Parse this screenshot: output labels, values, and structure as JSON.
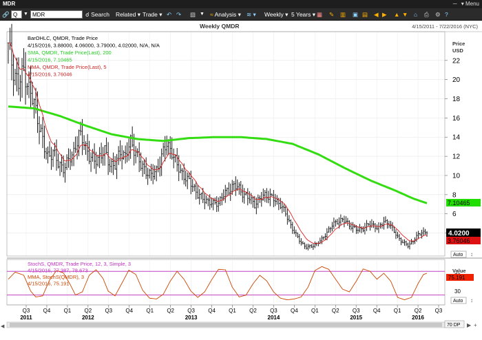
{
  "window": {
    "title": "MDR",
    "menu_label": "Menu",
    "menu_arrow": "▾"
  },
  "toolbar": {
    "symbol_type": "Q",
    "symbol": "MDR",
    "search": "Search",
    "related": "Related",
    "trade": "Trade",
    "analysis": "Analysis",
    "interval": "Weekly",
    "range": "5 Years",
    "arrow": "▾"
  },
  "chart": {
    "title": "Weekly QMDR",
    "date_range": "4/15/2011 - 7/22/2016 (NYC)",
    "price_axis_title": [
      "Price",
      "USD"
    ],
    "value_axis_title": "Value",
    "auto_label": "Auto",
    "zoom_label": "70 DP",
    "legend_main": [
      {
        "text": "BarOHLC, QMDR, Trade Price",
        "color": "#000000"
      },
      {
        "text": "4/15/2016, 3.88000, 4.06000, 3.79000, 4.02000, N/A, N/A",
        "color": "#000000"
      },
      {
        "text": "SMA, QMDR, Trade Price(Last), 200",
        "color": "#22cc22"
      },
      {
        "text": "4/15/2016, 7.10465",
        "color": "#22cc22"
      },
      {
        "text": "MMA, QMDR, Trade Price(Last), 5",
        "color": "#cc2222"
      },
      {
        "text": "4/15/2016, 3.76046",
        "color": "#cc2222"
      }
    ],
    "legend_lower": [
      {
        "text": "StochS, QMDR, Trade Price, 12, 3, Simple, 3",
        "color": "#c030c0"
      },
      {
        "text": "4/15/2016, 77.387, 78.673",
        "color": "#c030c0"
      },
      {
        "text": "MMA, StochS(QMDR), 3",
        "color": "#cc4400"
      },
      {
        "text": "4/15/2016, 75.191",
        "color": "#cc4400"
      }
    ],
    "price_tag_last": "4.0200",
    "price_tag_sma": "7.10465",
    "price_tag_mma": "3.76046",
    "value_tag": "75.191",
    "colors": {
      "sma": "#33dd11",
      "mma": "#dd2222",
      "bars": "#000000",
      "stoch": "#cc4400",
      "levels": "#c040c0"
    }
  },
  "chart_data": {
    "type": "line",
    "price_axis": {
      "ticks": [
        4,
        6,
        8,
        10,
        12,
        14,
        16,
        18,
        20,
        22
      ],
      "range": [
        1.6,
        25
      ]
    },
    "value_axis": {
      "ticks": [
        30,
        70
      ],
      "range": [
        -5,
        110
      ],
      "levels": [
        20,
        80
      ]
    },
    "x_quarters": [
      {
        "label": "Q3",
        "year": "2011"
      },
      {
        "label": "Q4",
        "year": ""
      },
      {
        "label": "Q1",
        "year": ""
      },
      {
        "label": "Q2",
        "year": "2012"
      },
      {
        "label": "Q3",
        "year": ""
      },
      {
        "label": "Q4",
        "year": ""
      },
      {
        "label": "Q1",
        "year": ""
      },
      {
        "label": "Q2",
        "year": ""
      },
      {
        "label": "Q3",
        "year": "2013"
      },
      {
        "label": "Q4",
        "year": ""
      },
      {
        "label": "Q1",
        "year": ""
      },
      {
        "label": "Q2",
        "year": ""
      },
      {
        "label": "Q3",
        "year": "2014"
      },
      {
        "label": "Q4",
        "year": ""
      },
      {
        "label": "Q1",
        "year": ""
      },
      {
        "label": "Q2",
        "year": ""
      },
      {
        "label": "Q3",
        "year": "2015"
      },
      {
        "label": "Q4",
        "year": ""
      },
      {
        "label": "Q1",
        "year": ""
      },
      {
        "label": "Q2",
        "year": "2016"
      },
      {
        "label": "Q3",
        "year": ""
      }
    ],
    "ohlc_anchors": [
      [
        0,
        23.5
      ],
      [
        3,
        21
      ],
      [
        6,
        19.5
      ],
      [
        9,
        21
      ],
      [
        12,
        19
      ],
      [
        15,
        17.5
      ],
      [
        17,
        16
      ],
      [
        19,
        14.5
      ],
      [
        21,
        12.8
      ],
      [
        23,
        12
      ],
      [
        26,
        12.5
      ],
      [
        29,
        11.2
      ],
      [
        32,
        10.8
      ],
      [
        35,
        11.5
      ],
      [
        38,
        12.5
      ],
      [
        41,
        14.2
      ],
      [
        44,
        13.5
      ],
      [
        47,
        12
      ],
      [
        50,
        11.5
      ],
      [
        53,
        12
      ],
      [
        56,
        12.5
      ],
      [
        59,
        11.2
      ],
      [
        62,
        11
      ],
      [
        65,
        12.5
      ],
      [
        68,
        12
      ],
      [
        71,
        13.5
      ],
      [
        74,
        12.5
      ],
      [
        77,
        11
      ],
      [
        80,
        10.5
      ],
      [
        83,
        10
      ],
      [
        86,
        10.5
      ],
      [
        89,
        12
      ],
      [
        92,
        13.3
      ],
      [
        95,
        12.5
      ],
      [
        98,
        11
      ],
      [
        101,
        10.2
      ],
      [
        104,
        9.5
      ],
      [
        107,
        9
      ],
      [
        110,
        8
      ],
      [
        113,
        7.6
      ],
      [
        116,
        7.3
      ],
      [
        119,
        7
      ],
      [
        122,
        7.2
      ],
      [
        125,
        8
      ],
      [
        128,
        8.5
      ],
      [
        131,
        9
      ],
      [
        134,
        8.6
      ],
      [
        137,
        8
      ],
      [
        140,
        7.6
      ],
      [
        143,
        7
      ],
      [
        146,
        7.5
      ],
      [
        149,
        8
      ],
      [
        152,
        7.8
      ],
      [
        155,
        7.4
      ],
      [
        158,
        7
      ],
      [
        161,
        6
      ],
      [
        164,
        4.8
      ],
      [
        167,
        3.8
      ],
      [
        170,
        3
      ],
      [
        173,
        2.5
      ],
      [
        176,
        2.6
      ],
      [
        179,
        2.9
      ],
      [
        182,
        3.3
      ],
      [
        185,
        4.1
      ],
      [
        188,
        4.8
      ],
      [
        191,
        5.2
      ],
      [
        194,
        5.4
      ],
      [
        197,
        5
      ],
      [
        200,
        4.6
      ],
      [
        203,
        4.3
      ],
      [
        206,
        4.5
      ],
      [
        209,
        4.9
      ],
      [
        212,
        4.8
      ],
      [
        215,
        4.5
      ],
      [
        218,
        5.2
      ],
      [
        221,
        5
      ],
      [
        223,
        4.4
      ],
      [
        226,
        3.6
      ],
      [
        229,
        3
      ],
      [
        232,
        2.7
      ],
      [
        235,
        3.2
      ],
      [
        238,
        3.8
      ],
      [
        240,
        4.1
      ],
      [
        243,
        4.02
      ]
    ],
    "sma200_anchors": [
      [
        0,
        17.2
      ],
      [
        15,
        17
      ],
      [
        30,
        16.2
      ],
      [
        45,
        15.2
      ],
      [
        60,
        14.3
      ],
      [
        75,
        13.8
      ],
      [
        90,
        13.6
      ],
      [
        105,
        13.9
      ],
      [
        120,
        14
      ],
      [
        135,
        14
      ],
      [
        150,
        13.8
      ],
      [
        165,
        13.3
      ],
      [
        180,
        12.2
      ],
      [
        195,
        10.8
      ],
      [
        210,
        9.5
      ],
      [
        225,
        8.4
      ],
      [
        235,
        7.6
      ],
      [
        243,
        7.10465
      ]
    ],
    "stoch_anchors": [
      [
        0,
        60
      ],
      [
        4,
        78
      ],
      [
        9,
        70
      ],
      [
        13,
        30
      ],
      [
        16,
        15
      ],
      [
        20,
        18
      ],
      [
        24,
        58
      ],
      [
        28,
        82
      ],
      [
        32,
        76
      ],
      [
        36,
        46
      ],
      [
        39,
        20
      ],
      [
        43,
        28
      ],
      [
        47,
        70
      ],
      [
        51,
        84
      ],
      [
        55,
        62
      ],
      [
        58,
        30
      ],
      [
        62,
        18
      ],
      [
        66,
        50
      ],
      [
        70,
        83
      ],
      [
        74,
        72
      ],
      [
        78,
        32
      ],
      [
        82,
        12
      ],
      [
        86,
        10
      ],
      [
        90,
        22
      ],
      [
        94,
        55
      ],
      [
        98,
        80
      ],
      [
        102,
        60
      ],
      [
        106,
        30
      ],
      [
        110,
        14
      ],
      [
        114,
        28
      ],
      [
        118,
        58
      ],
      [
        122,
        85
      ],
      [
        126,
        84
      ],
      [
        130,
        40
      ],
      [
        134,
        15
      ],
      [
        138,
        20
      ],
      [
        142,
        48
      ],
      [
        146,
        70
      ],
      [
        150,
        56
      ],
      [
        154,
        28
      ],
      [
        158,
        12
      ],
      [
        162,
        8
      ],
      [
        166,
        10
      ],
      [
        170,
        15
      ],
      [
        174,
        40
      ],
      [
        178,
        82
      ],
      [
        182,
        92
      ],
      [
        186,
        85
      ],
      [
        190,
        60
      ],
      [
        194,
        35
      ],
      [
        198,
        28
      ],
      [
        202,
        55
      ],
      [
        206,
        86
      ],
      [
        210,
        80
      ],
      [
        214,
        60
      ],
      [
        218,
        75
      ],
      [
        222,
        55
      ],
      [
        226,
        14
      ],
      [
        230,
        8
      ],
      [
        234,
        14
      ],
      [
        238,
        50
      ],
      [
        241,
        72
      ],
      [
        243,
        75.191
      ]
    ]
  }
}
